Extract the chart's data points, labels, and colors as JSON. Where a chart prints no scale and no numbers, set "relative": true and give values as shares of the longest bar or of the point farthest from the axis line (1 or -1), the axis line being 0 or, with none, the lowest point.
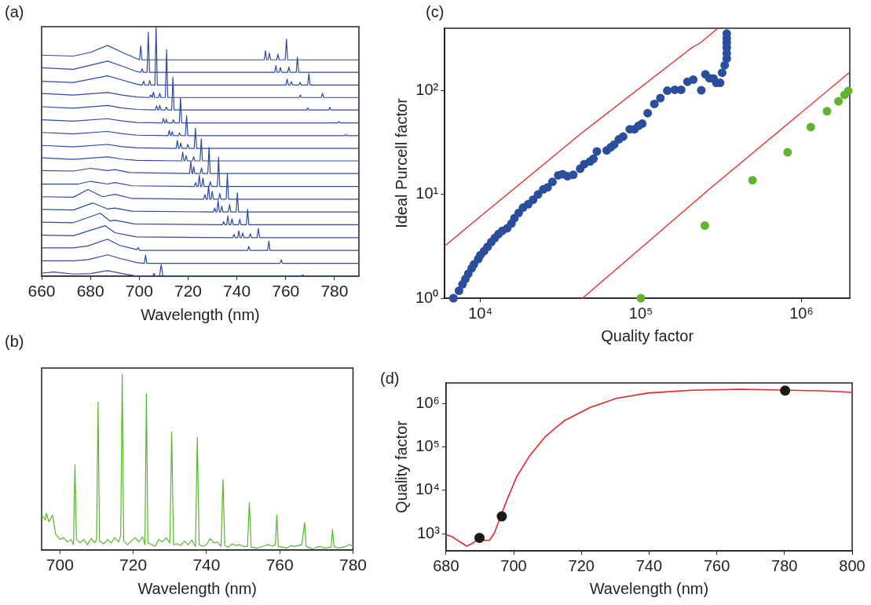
{
  "chart_data": [
    {
      "type": "line",
      "annotations": [
        "(a)"
      ],
      "xlabel": "Wavelength (nm)",
      "relative": true,
      "xlim": [
        660,
        790
      ],
      "xticks": [
        660,
        680,
        700,
        720,
        740,
        760,
        780
      ],
      "series": [
        {
          "color": "#2b4ba0",
          "x": [
            660,
            673,
            680,
            687,
            693,
            699,
            700.1,
            700.6,
            701.1,
            751.2,
            751.7,
            752.2,
            752.8,
            753.3,
            753.8,
            756.3,
            756.8,
            757.3,
            759.8,
            760.3,
            760.8,
            790
          ],
          "values": [
            0.886,
            0.882,
            0.897,
            0.925,
            0.897,
            0.872,
            0.867,
            0.923,
            0.867,
            0.867,
            0.904,
            0.867,
            0.867,
            0.894,
            0.867,
            0.867,
            0.89,
            0.867,
            0.867,
            0.95,
            0.867,
            0.867
          ]
        },
        {
          "color": "#2b4ba0",
          "x": [
            660,
            673,
            687,
            693,
            699,
            700.7,
            701.2,
            701.7,
            703.2,
            703.7,
            704.2,
            755.5,
            756,
            756.5,
            757.3,
            757.8,
            758.3,
            760.8,
            761.3,
            761.8,
            764.3,
            764.8,
            765.3,
            790
          ],
          "values": [
            0.835,
            0.829,
            0.862,
            0.842,
            0.82,
            0.817,
            0.831,
            0.817,
            0.817,
            0.978,
            0.817,
            0.817,
            0.844,
            0.817,
            0.817,
            0.837,
            0.817,
            0.817,
            0.838,
            0.817,
            0.817,
            0.878,
            0.817,
            0.817
          ]
        },
        {
          "color": "#2b4ba0",
          "x": [
            660,
            673,
            687,
            693,
            699,
            701.3,
            701.8,
            702.3,
            703.8,
            704.3,
            704.8,
            706.4,
            706.9,
            707.4,
            760.1,
            760.6,
            761.1,
            761.8,
            762.3,
            762.8,
            765.4,
            765.9,
            766.4,
            769,
            769.5,
            770,
            790
          ],
          "values": [
            0.781,
            0.776,
            0.803,
            0.786,
            0.769,
            0.766,
            0.782,
            0.766,
            0.766,
            0.784,
            0.766,
            0.766,
            1.0,
            0.766,
            0.766,
            0.79,
            0.766,
            0.766,
            0.78,
            0.766,
            0.766,
            0.777,
            0.766,
            0.766,
            0.812,
            0.766,
            0.766
          ]
        },
        {
          "color": "#2b4ba0",
          "x": [
            660,
            673,
            687,
            693,
            699,
            704.2,
            704.7,
            705.3,
            705.8,
            706.3,
            707.9,
            708.4,
            708.9,
            710.7,
            711.2,
            711.7,
            765.5,
            766,
            766.5,
            774.6,
            775.1,
            775.6,
            790
          ],
          "values": [
            0.732,
            0.726,
            0.736,
            0.726,
            0.718,
            0.716,
            0.726,
            0.716,
            0.738,
            0.716,
            0.716,
            0.733,
            0.716,
            0.716,
            0.908,
            0.716,
            0.716,
            0.726,
            0.716,
            0.716,
            0.733,
            0.716,
            0.716
          ]
        },
        {
          "color": "#2b4ba0",
          "x": [
            660,
            673,
            687,
            693,
            699,
            706.6,
            707.1,
            707.6,
            708,
            708.4,
            708.9,
            710.6,
            711.1,
            711.6,
            713.3,
            713.8,
            714.3,
            768.5,
            769,
            769.5,
            777.6,
            778.1,
            778.6,
            790
          ],
          "values": [
            0.679,
            0.673,
            0.684,
            0.674,
            0.668,
            0.666,
            0.683,
            0.666,
            0.666,
            0.685,
            0.666,
            0.666,
            0.678,
            0.666,
            0.666,
            0.797,
            0.666,
            0.666,
            0.674,
            0.666,
            0.666,
            0.677,
            0.666,
            0.666
          ]
        },
        {
          "color": "#2b4ba0",
          "x": [
            660,
            673,
            687,
            693,
            699,
            709.4,
            709.9,
            710.4,
            710.7,
            711.1,
            711.5,
            713.5,
            714,
            714.5,
            716.4,
            716.9,
            717.4,
            781.3,
            781.8,
            782.3,
            790
          ],
          "values": [
            0.627,
            0.621,
            0.631,
            0.622,
            0.616,
            0.614,
            0.632,
            0.614,
            0.614,
            0.629,
            0.614,
            0.614,
            0.627,
            0.614,
            0.614,
            0.714,
            0.614,
            0.614,
            0.62,
            0.614,
            0.614
          ]
        },
        {
          "color": "#2b4ba0",
          "x": [
            660,
            673,
            687,
            693,
            699,
            711.8,
            712.3,
            712.8,
            713.1,
            713.5,
            714,
            716,
            716.5,
            717,
            718.9,
            719.4,
            719.9,
            784.2,
            784.7,
            785.2,
            790
          ],
          "values": [
            0.576,
            0.57,
            0.58,
            0.571,
            0.565,
            0.563,
            0.584,
            0.563,
            0.563,
            0.579,
            0.563,
            0.563,
            0.574,
            0.563,
            0.563,
            0.643,
            0.563,
            0.563,
            0.568,
            0.563,
            0.563
          ]
        },
        {
          "color": "#2b4ba0",
          "x": [
            660,
            673,
            687,
            693,
            699,
            715.1,
            715.6,
            716.1,
            716.5,
            717,
            717.5,
            719.4,
            719.9,
            720.4,
            722.5,
            723,
            723.5,
            790
          ],
          "values": [
            0.524,
            0.518,
            0.528,
            0.519,
            0.514,
            0.512,
            0.544,
            0.512,
            0.512,
            0.534,
            0.512,
            0.512,
            0.528,
            0.512,
            0.512,
            0.593,
            0.512,
            0.512
          ]
        },
        {
          "color": "#2b4ba0",
          "x": [
            660,
            673,
            687,
            693,
            699,
            717.3,
            717.8,
            718.3,
            718.7,
            719.2,
            719.7,
            721.8,
            722.3,
            722.8,
            724.9,
            725.4,
            725.9,
            790
          ],
          "values": [
            0.474,
            0.468,
            0.478,
            0.469,
            0.464,
            0.462,
            0.497,
            0.462,
            0.462,
            0.483,
            0.462,
            0.462,
            0.479,
            0.462,
            0.462,
            0.55,
            0.462,
            0.462
          ]
        },
        {
          "color": "#2b4ba0",
          "x": [
            660,
            673,
            680,
            687,
            690,
            696,
            720.6,
            721.1,
            721.6,
            721.9,
            722.3,
            722.8,
            725,
            725.5,
            726,
            728.1,
            728.6,
            729.1,
            790
          ],
          "values": [
            0.423,
            0.421,
            0.432,
            0.423,
            0.427,
            0.415,
            0.411,
            0.46,
            0.411,
            0.411,
            0.439,
            0.411,
            0.411,
            0.434,
            0.411,
            0.411,
            0.517,
            0.411,
            0.411
          ]
        },
        {
          "color": "#2b4ba0",
          "x": [
            660,
            675,
            680,
            687,
            690,
            697,
            722.6,
            723.1,
            723.6,
            724.1,
            724.6,
            725.1,
            725.6,
            726.1,
            726.6,
            728.6,
            729.1,
            729.6,
            732,
            732.5,
            733,
            790
          ],
          "values": [
            0.369,
            0.369,
            0.38,
            0.369,
            0.375,
            0.362,
            0.359,
            0.375,
            0.359,
            0.359,
            0.404,
            0.359,
            0.359,
            0.393,
            0.359,
            0.359,
            0.379,
            0.359,
            0.359,
            0.477,
            0.359,
            0.359
          ]
        },
        {
          "color": "#2b4ba0",
          "x": [
            660,
            673,
            679,
            685,
            690,
            697,
            726.4,
            726.9,
            727.4,
            727.9,
            728.4,
            728.9,
            729.4,
            729.9,
            730.4,
            732.5,
            733,
            733.5,
            735.6,
            736.1,
            736.6,
            790
          ],
          "values": [
            0.318,
            0.316,
            0.347,
            0.318,
            0.328,
            0.311,
            0.308,
            0.327,
            0.308,
            0.308,
            0.361,
            0.308,
            0.308,
            0.34,
            0.308,
            0.308,
            0.331,
            0.308,
            0.308,
            0.411,
            0.308,
            0.308
          ]
        },
        {
          "color": "#2b4ba0",
          "x": [
            660,
            673,
            681,
            687,
            690,
            697,
            730.4,
            730.9,
            731.4,
            731.8,
            732.3,
            732.8,
            733.3,
            733.8,
            734.3,
            736.5,
            737,
            737.5,
            739.7,
            740.2,
            740.7,
            790
          ],
          "values": [
            0.267,
            0.265,
            0.293,
            0.269,
            0.273,
            0.26,
            0.257,
            0.273,
            0.257,
            0.257,
            0.303,
            0.257,
            0.257,
            0.281,
            0.257,
            0.257,
            0.287,
            0.257,
            0.257,
            0.334,
            0.257,
            0.257
          ]
        },
        {
          "color": "#2b4ba0",
          "x": [
            660,
            673,
            684,
            688,
            690,
            698,
            734.1,
            734.6,
            735.1,
            735.8,
            736.3,
            736.8,
            737.5,
            738,
            738.5,
            740.7,
            741.2,
            741.7,
            743.9,
            744.4,
            744.9,
            790
          ],
          "values": [
            0.216,
            0.214,
            0.252,
            0.221,
            0.224,
            0.209,
            0.206,
            0.218,
            0.206,
            0.206,
            0.241,
            0.206,
            0.206,
            0.23,
            0.206,
            0.206,
            0.228,
            0.206,
            0.206,
            0.268,
            0.206,
            0.206
          ]
        },
        {
          "color": "#2b4ba0",
          "x": [
            660,
            673,
            686,
            690,
            695,
            699,
            738.3,
            738.8,
            739.3,
            740.3,
            740.8,
            741.3,
            741.9,
            742.4,
            742.9,
            745,
            745.5,
            746,
            748.3,
            748.8,
            749.3,
            790
          ],
          "values": [
            0.164,
            0.162,
            0.202,
            0.174,
            0.164,
            0.157,
            0.154,
            0.167,
            0.154,
            0.154,
            0.181,
            0.154,
            0.154,
            0.173,
            0.154,
            0.154,
            0.17,
            0.154,
            0.154,
            0.191,
            0.154,
            0.154
          ]
        },
        {
          "color": "#2b4ba0",
          "x": [
            660,
            673,
            679,
            687,
            692,
            699,
            699.6,
            700.1,
            744.4,
            744.9,
            745.4,
            752.6,
            753.1,
            753.6,
            790
          ],
          "values": [
            0.113,
            0.113,
            0.121,
            0.148,
            0.123,
            0.106,
            0.114,
            0.103,
            0.103,
            0.118,
            0.103,
            0.103,
            0.14,
            0.103,
            0.103
          ]
        },
        {
          "color": "#2b4ba0",
          "x": [
            660,
            673,
            679,
            687,
            692,
            699,
            702.1,
            702.6,
            703.1,
            757.7,
            758.2,
            758.7,
            790
          ],
          "values": [
            0.061,
            0.061,
            0.066,
            0.085,
            0.071,
            0.054,
            0.051,
            0.084,
            0.051,
            0.051,
            0.066,
            0.051,
            0.051
          ]
        },
        {
          "color": "#2b4ba0",
          "x": [
            660,
            665,
            673,
            680,
            687,
            693,
            699,
            705.5,
            706,
            706.5,
            708.3,
            709,
            709.7,
            766.5,
            767,
            767.5,
            790
          ],
          "values": [
            0.012,
            0.016,
            0.008,
            0.01,
            0.022,
            0.01,
            0,
            0,
            0.011,
            0,
            0,
            0.046,
            0,
            0,
            0.005,
            0,
            0
          ]
        }
      ]
    },
    {
      "type": "line",
      "annotations": [
        "(b)"
      ],
      "xlabel": "Wavelength (nm)",
      "relative": true,
      "xlim": [
        695,
        780
      ],
      "xticks": [
        700,
        720,
        740,
        760,
        780
      ],
      "series": [
        {
          "color": "#5ab52e",
          "x": [
            695,
            696,
            696.3,
            697,
            698,
            698.8,
            700,
            701,
            702,
            703,
            703.7,
            704.1,
            704.5,
            705.5,
            706.5,
            707.5,
            708.5,
            709.5,
            710,
            710.4,
            710.8,
            712,
            713,
            714,
            715,
            716,
            716.6,
            717,
            717.4,
            718.5,
            719.5,
            720.5,
            721.5,
            722.5,
            723.2,
            723.6,
            724,
            725,
            726,
            727,
            728,
            729,
            730,
            730.5,
            731,
            732,
            733,
            734,
            735,
            736,
            737,
            737.5,
            738,
            739,
            740,
            741,
            742,
            743,
            744,
            744.5,
            745,
            746,
            747,
            748,
            749,
            750,
            751.2,
            751.7,
            752.2,
            754,
            756,
            757,
            758,
            758.8,
            759.2,
            759.6,
            761,
            762,
            763,
            764,
            766,
            766.8,
            767.2,
            769,
            770,
            771,
            772,
            774,
            774.4,
            774.8,
            776,
            778,
            779,
            780
          ],
          "values": [
            0.2,
            0.17,
            0.21,
            0.16,
            0.2,
            0.09,
            0.06,
            0.07,
            0.045,
            0.06,
            0.03,
            0.484,
            0.06,
            0.04,
            0.06,
            0.03,
            0.065,
            0.04,
            0.06,
            0.842,
            0.05,
            0.035,
            0.06,
            0.04,
            0.07,
            0.045,
            0.08,
            1.0,
            0.05,
            0.03,
            0.05,
            0.07,
            0.045,
            0.075,
            0.03,
            0.888,
            0.04,
            0.03,
            0.02,
            0.06,
            0.045,
            0.07,
            0.04,
            0.671,
            0.03,
            0.035,
            0.025,
            0.05,
            0.03,
            0.055,
            0.02,
            0.64,
            0.03,
            0.02,
            0.03,
            0.065,
            0.04,
            0.045,
            0.02,
            0.4,
            0.025,
            0.015,
            0.035,
            0.025,
            0.03,
            0.02,
            0.02,
            0.271,
            0.015,
            0.01,
            0.025,
            0.03,
            0.02,
            0.03,
            0.201,
            0.02,
            0.015,
            0.01,
            0.025,
            0.02,
            0.03,
            0.155,
            0.02,
            0.005,
            0.015,
            0.02,
            0.01,
            0.015,
            0.116,
            0.02,
            0.01,
            0.02,
            0.03,
            0.02
          ]
        }
      ]
    },
    {
      "type": "scatter",
      "annotations": [
        "(c)"
      ],
      "xlabel": "Quality factor",
      "ylabel": "Ideal Purcell factor",
      "log": "xy",
      "xlim": [
        6000,
        2000000
      ],
      "ylim": [
        1,
        400
      ],
      "xticks": [
        {
          "value": 10000,
          "label": "10⁴"
        },
        {
          "value": 100000,
          "label": "10⁵"
        },
        {
          "value": 1000000,
          "label": "10⁶"
        }
      ],
      "yticks": [
        {
          "value": 1,
          "label": "10⁰"
        },
        {
          "value": 10,
          "label": "10¹"
        },
        {
          "value": 100,
          "label": "10²"
        }
      ],
      "series": [
        {
          "marker": "circle",
          "color": "#2a4d9c",
          "x": [
            6800,
            7360,
            7740,
            8070,
            8410,
            8830,
            9120,
            9710,
            10000,
            10550,
            11090,
            11700,
            12300,
            12970,
            13700,
            14700,
            15630,
            16300,
            17330,
            18440,
            19870,
            21310,
            22870,
            24640,
            26220,
            28130,
            30560,
            32510,
            34890,
            37920,
            41880,
            44380,
            48220,
            50640,
            53190,
            61240,
            64890,
            68190,
            72880,
            77500,
            85270,
            91200,
            96600,
            101900,
            110200,
            121300,
            132200,
            146000,
            162600,
            178100,
            195000,
            211800,
            237800,
            252200,
            267200,
            283200,
            295100,
            311300,
            320600,
            332700,
            342400,
            342400,
            342400,
            342400,
            342400,
            342400
          ],
          "values": [
            1.0,
            1.18,
            1.36,
            1.53,
            1.72,
            1.94,
            2.12,
            2.38,
            2.6,
            2.84,
            3.13,
            3.48,
            3.8,
            4.15,
            4.46,
            4.72,
            5.25,
            5.9,
            6.64,
            7.46,
            8.05,
            8.9,
            10.0,
            11.2,
            11.7,
            13.2,
            15.3,
            15.7,
            15.0,
            15.5,
            17.7,
            19.6,
            20.8,
            22.1,
            26.0,
            26.6,
            28.5,
            30.3,
            34.0,
            36.1,
            42.5,
            42.5,
            45.9,
            48.1,
            60.8,
            74.6,
            84.9,
            100,
            102,
            102,
            122,
            128,
            101,
            144,
            132,
            131,
            119,
            119,
            149,
            176,
            204,
            230,
            260,
            290,
            320,
            355
          ]
        },
        {
          "marker": "circle",
          "color": "#62b42e",
          "x": [
            100000,
            250000,
            495500,
            820000,
            1143000,
            1442000,
            1700000,
            1854000,
            1955000
          ],
          "values": [
            1.0,
            5.01,
            13.7,
            25.5,
            44.6,
            63.4,
            79.1,
            91.1,
            99.4
          ]
        },
        {
          "type": "line",
          "color": "#e8262a",
          "x": [
            6000,
            9710,
            42170,
            208500,
            234900,
            301500
          ],
          "values": [
            3.19,
            5.9,
            38.5,
            261,
            290,
            400
          ]
        },
        {
          "type": "line",
          "color": "#e8262a",
          "x": [
            43300,
            260600,
            2000000
          ],
          "values": [
            1,
            10.9,
            151
          ]
        }
      ]
    },
    {
      "type": "line",
      "annotations": [
        "(d)"
      ],
      "xlabel": "Wavelength (nm)",
      "ylabel": "Quality factor",
      "log": "y",
      "xlim": [
        680,
        800
      ],
      "xticks": [
        680,
        700,
        720,
        740,
        760,
        780,
        800
      ],
      "ylim": [
        400,
        3000000
      ],
      "yticks": [
        {
          "value": 1000,
          "label": "10³"
        },
        {
          "value": 10000,
          "label": "10⁴"
        },
        {
          "value": 100000,
          "label": "10⁵"
        },
        {
          "value": 1000000,
          "label": "10⁶"
        }
      ],
      "series": [
        {
          "color": "#e8262a",
          "x": [
            680,
            682.1,
            684,
            686.1,
            687.7,
            689.6,
            691.5,
            692.9,
            694.3,
            698.1,
            700.9,
            704.7,
            709.4,
            715.1,
            722.6,
            730.2,
            739.6,
            752.8,
            767,
            790.6,
            800
          ],
          "values": [
            950,
            828,
            652,
            513,
            589,
            748,
            699,
            711,
            1035,
            6230,
            20600,
            62600,
            174700,
            410500,
            813000,
            1312000,
            1755000,
            2046000,
            2155000,
            1976000,
            1815000
          ]
        },
        {
          "type": "scatter",
          "marker": "circle",
          "color": "#1a1a1a",
          "x": [
            689.9,
            696.5,
            780.2
          ],
          "values": [
            800,
            2500,
            2000000
          ]
        }
      ]
    }
  ]
}
